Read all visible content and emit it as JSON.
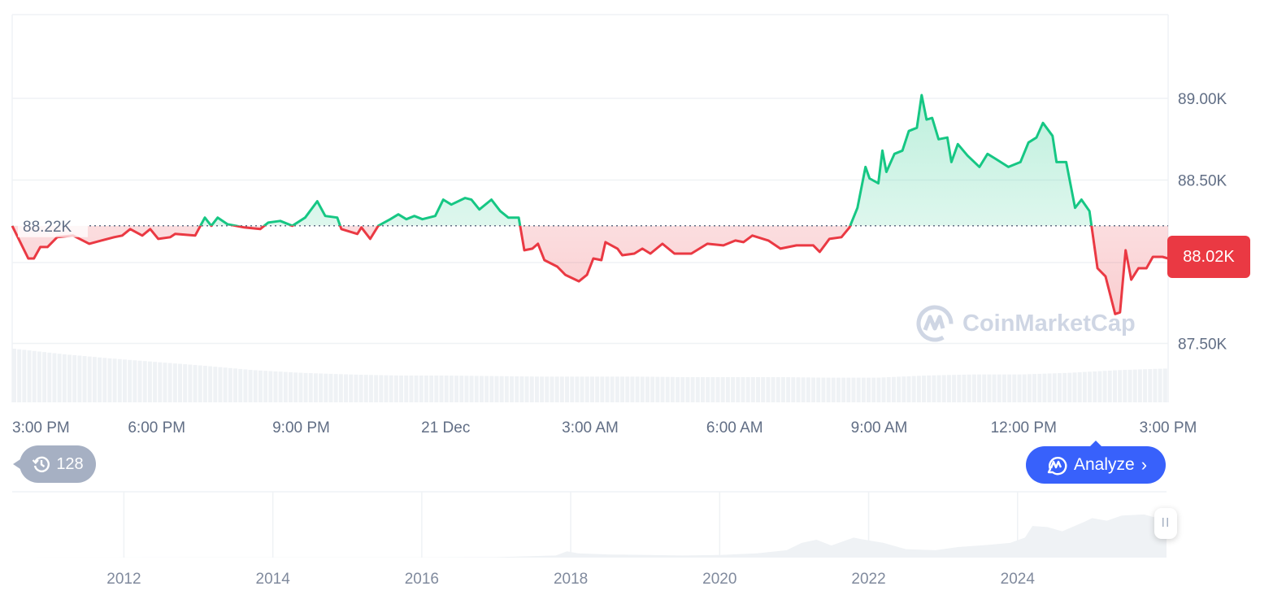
{
  "chart_data": {
    "type": "area",
    "ylim": [
      87.5,
      89.5
    ],
    "y_unit": "K",
    "y_ticks": [
      "89.00K",
      "88.50K",
      "87.50K"
    ],
    "y_tick_values": [
      89.0,
      88.5,
      87.5
    ],
    "x_ticks": [
      "3:00 PM",
      "6:00 PM",
      "9:00 PM",
      "21 Dec",
      "3:00 AM",
      "6:00 AM",
      "9:00 AM",
      "12:00 PM",
      "3:00 PM"
    ],
    "x_range": [
      "20 Dec 15:00",
      "21 Dec 15:00"
    ],
    "baseline": {
      "value": 88.22,
      "label": "88.22K"
    },
    "current_price": {
      "value": 88.02,
      "label": "88.02K"
    },
    "grid": true,
    "colors": {
      "up": "#16c784",
      "down": "#ea3943",
      "grid": "#eff2f5",
      "volume": "#eff2f5",
      "accent": "#3861fb"
    },
    "series": [
      {
        "points": [
          [
            "20 Dec 15:00",
            88.22
          ],
          [
            "20 Dec 15:20",
            88.02
          ],
          [
            "20 Dec 15:27",
            88.02
          ],
          [
            "20 Dec 15:35",
            88.09
          ],
          [
            "20 Dec 15:44",
            88.09
          ],
          [
            "20 Dec 15:56",
            88.15
          ],
          [
            "20 Dec 16:16",
            88.16
          ],
          [
            "20 Dec 16:36",
            88.11
          ],
          [
            "20 Dec 16:51",
            88.13
          ],
          [
            "20 Dec 17:07",
            88.15
          ],
          [
            "20 Dec 17:17",
            88.16
          ],
          [
            "20 Dec 17:27",
            88.2
          ],
          [
            "20 Dec 17:42",
            88.16
          ],
          [
            "20 Dec 17:52",
            88.2
          ],
          [
            "20 Dec 18:02",
            88.14
          ],
          [
            "20 Dec 18:17",
            88.15
          ],
          [
            "20 Dec 18:23",
            88.17
          ],
          [
            "20 Dec 18:48",
            88.16
          ],
          [
            "20 Dec 19:00",
            88.27
          ],
          [
            "20 Dec 19:08",
            88.22
          ],
          [
            "20 Dec 19:16",
            88.27
          ],
          [
            "20 Dec 19:28",
            88.23
          ],
          [
            "20 Dec 19:49",
            88.21
          ],
          [
            "20 Dec 20:09",
            88.2
          ],
          [
            "20 Dec 20:19",
            88.24
          ],
          [
            "20 Dec 20:34",
            88.25
          ],
          [
            "20 Dec 20:49",
            88.22
          ],
          [
            "20 Dec 21:05",
            88.27
          ],
          [
            "20 Dec 21:20",
            88.37
          ],
          [
            "20 Dec 21:30",
            88.28
          ],
          [
            "20 Dec 21:45",
            88.27
          ],
          [
            "20 Dec 21:50",
            88.2
          ],
          [
            "20 Dec 22:10",
            88.17
          ],
          [
            "20 Dec 22:15",
            88.21
          ],
          [
            "20 Dec 22:26",
            88.14
          ],
          [
            "20 Dec 22:36",
            88.22
          ],
          [
            "20 Dec 22:51",
            88.26
          ],
          [
            "20 Dec 23:01",
            88.29
          ],
          [
            "20 Dec 23:11",
            88.26
          ],
          [
            "20 Dec 23:21",
            88.28
          ],
          [
            "20 Dec 23:31",
            88.26
          ],
          [
            "20 Dec 23:47",
            88.28
          ],
          [
            "20 Dec 23:57",
            88.38
          ],
          [
            "21 Dec 00:07",
            88.35
          ],
          [
            "21 Dec 00:24",
            88.39
          ],
          [
            "21 Dec 00:32",
            88.38
          ],
          [
            "21 Dec 00:42",
            88.32
          ],
          [
            "21 Dec 00:57",
            88.38
          ],
          [
            "21 Dec 01:08",
            88.31
          ],
          [
            "21 Dec 01:18",
            88.27
          ],
          [
            "21 Dec 01:31",
            88.27
          ],
          [
            "21 Dec 01:38",
            88.07
          ],
          [
            "21 Dec 01:48",
            88.08
          ],
          [
            "21 Dec 01:55",
            88.11
          ],
          [
            "21 Dec 02:03",
            88.01
          ],
          [
            "21 Dec 02:19",
            87.97
          ],
          [
            "21 Dec 02:29",
            87.92
          ],
          [
            "21 Dec 02:46",
            87.88
          ],
          [
            "21 Dec 02:56",
            87.92
          ],
          [
            "21 Dec 03:04",
            88.02
          ],
          [
            "21 Dec 03:14",
            88.01
          ],
          [
            "21 Dec 03:19",
            88.12
          ],
          [
            "21 Dec 03:34",
            88.08
          ],
          [
            "21 Dec 03:40",
            88.04
          ],
          [
            "21 Dec 03:55",
            88.05
          ],
          [
            "21 Dec 04:05",
            88.08
          ],
          [
            "21 Dec 04:15",
            88.05
          ],
          [
            "21 Dec 04:30",
            88.11
          ],
          [
            "21 Dec 04:45",
            88.05
          ],
          [
            "21 Dec 05:06",
            88.05
          ],
          [
            "21 Dec 05:26",
            88.11
          ],
          [
            "21 Dec 05:46",
            88.1
          ],
          [
            "21 Dec 06:01",
            88.13
          ],
          [
            "21 Dec 06:11",
            88.12
          ],
          [
            "21 Dec 06:22",
            88.16
          ],
          [
            "21 Dec 06:42",
            88.13
          ],
          [
            "21 Dec 06:57",
            88.08
          ],
          [
            "21 Dec 07:17",
            88.1
          ],
          [
            "21 Dec 07:38",
            88.1
          ],
          [
            "21 Dec 07:46",
            88.06
          ],
          [
            "21 Dec 07:58",
            88.14
          ],
          [
            "21 Dec 08:13",
            88.15
          ],
          [
            "21 Dec 08:23",
            88.21
          ],
          [
            "21 Dec 08:33",
            88.33
          ],
          [
            "21 Dec 08:43",
            88.58
          ],
          [
            "21 Dec 08:48",
            88.51
          ],
          [
            "21 Dec 08:59",
            88.48
          ],
          [
            "21 Dec 09:04",
            88.68
          ],
          [
            "21 Dec 09:09",
            88.55
          ],
          [
            "21 Dec 09:19",
            88.66
          ],
          [
            "21 Dec 09:29",
            88.68
          ],
          [
            "21 Dec 09:37",
            88.8
          ],
          [
            "21 Dec 09:47",
            88.82
          ],
          [
            "21 Dec 09:53",
            89.02
          ],
          [
            "21 Dec 09:59",
            88.87
          ],
          [
            "21 Dec 10:06",
            88.88
          ],
          [
            "21 Dec 10:14",
            88.75
          ],
          [
            "21 Dec 10:25",
            88.76
          ],
          [
            "21 Dec 10:30",
            88.61
          ],
          [
            "21 Dec 10:38",
            88.72
          ],
          [
            "21 Dec 10:50",
            88.65
          ],
          [
            "21 Dec 11:05",
            88.58
          ],
          [
            "21 Dec 11:15",
            88.66
          ],
          [
            "21 Dec 11:25",
            88.63
          ],
          [
            "21 Dec 11:41",
            88.58
          ],
          [
            "21 Dec 11:56",
            88.61
          ],
          [
            "21 Dec 12:06",
            88.73
          ],
          [
            "21 Dec 12:16",
            88.76
          ],
          [
            "21 Dec 12:24",
            88.85
          ],
          [
            "21 Dec 12:36",
            88.77
          ],
          [
            "21 Dec 12:41",
            88.61
          ],
          [
            "21 Dec 12:53",
            88.61
          ],
          [
            "21 Dec 13:04",
            88.33
          ],
          [
            "21 Dec 13:12",
            88.38
          ],
          [
            "21 Dec 13:22",
            88.31
          ],
          [
            "21 Dec 13:32",
            87.96
          ],
          [
            "21 Dec 13:42",
            87.91
          ],
          [
            "21 Dec 13:54",
            87.68
          ],
          [
            "21 Dec 14:00",
            87.69
          ],
          [
            "21 Dec 14:07",
            88.07
          ],
          [
            "21 Dec 14:14",
            87.89
          ],
          [
            "21 Dec 14:23",
            87.96
          ],
          [
            "21 Dec 14:33",
            87.96
          ],
          [
            "21 Dec 14:41",
            88.03
          ],
          [
            "21 Dec 14:53",
            88.03
          ],
          [
            "21 Dec 15:00",
            88.02
          ]
        ]
      }
    ],
    "volume_relative": [
      1.0,
      0.9,
      0.82,
      0.75,
      0.68,
      0.6,
      0.55,
      0.52,
      0.5,
      0.5,
      0.49,
      0.48,
      0.48,
      0.48,
      0.47,
      0.47,
      0.47,
      0.46,
      0.46,
      0.5,
      0.52,
      0.52,
      0.55,
      0.6,
      0.63
    ]
  },
  "navigator": {
    "x_ticks": [
      "2012",
      "2014",
      "2016",
      "2018",
      "2020",
      "2022",
      "2024"
    ],
    "x_tick_values": [
      2012,
      2014,
      2016,
      2018,
      2020,
      2022,
      2024
    ],
    "x_range": [
      2010.5,
      2026.0
    ],
    "ylim": [
      0,
      125
    ],
    "points": [
      [
        2010.5,
        0
      ],
      [
        2013.0,
        0.5
      ],
      [
        2016.0,
        0.5
      ],
      [
        2017.0,
        1
      ],
      [
        2017.8,
        4
      ],
      [
        2017.95,
        12
      ],
      [
        2018.1,
        8
      ],
      [
        2018.5,
        6
      ],
      [
        2019.5,
        4
      ],
      [
        2020.0,
        5
      ],
      [
        2020.5,
        8
      ],
      [
        2020.9,
        14
      ],
      [
        2021.1,
        28
      ],
      [
        2021.3,
        34
      ],
      [
        2021.5,
        23
      ],
      [
        2021.8,
        38
      ],
      [
        2021.9,
        35
      ],
      [
        2022.2,
        28
      ],
      [
        2022.5,
        16
      ],
      [
        2022.9,
        14
      ],
      [
        2023.2,
        20
      ],
      [
        2023.6,
        24
      ],
      [
        2023.9,
        28
      ],
      [
        2024.1,
        38
      ],
      [
        2024.2,
        60
      ],
      [
        2024.4,
        58
      ],
      [
        2024.6,
        50
      ],
      [
        2024.9,
        68
      ],
      [
        2025.0,
        75
      ],
      [
        2025.2,
        70
      ],
      [
        2025.4,
        80
      ],
      [
        2025.7,
        82
      ],
      [
        2025.8,
        78
      ],
      [
        2026.0,
        72
      ]
    ],
    "handle_label": "II"
  },
  "controls": {
    "history_count": "128",
    "analyze_label": "Analyze"
  },
  "watermark": "CoinMarketCap"
}
